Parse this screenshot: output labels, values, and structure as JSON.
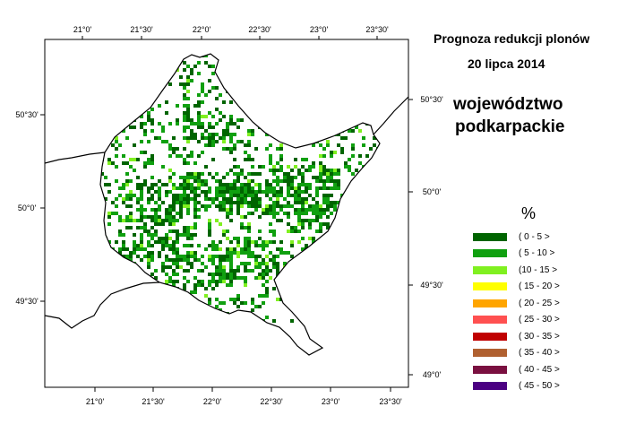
{
  "title": "Prognoza redukcji plonów",
  "date": "20 lipca 2014",
  "region": [
    "województwo",
    "podkarpackie"
  ],
  "legend": {
    "unit": "%",
    "items": [
      {
        "label": "( 0 - 5 >",
        "color": "#006400"
      },
      {
        "label": "( 5 - 10 >",
        "color": "#10a010"
      },
      {
        "label": "(10 - 15 >",
        "color": "#80f020"
      },
      {
        "label": "( 15 - 20 >",
        "color": "#ffff00"
      },
      {
        "label": "( 20 - 25 >",
        "color": "#ffa500"
      },
      {
        "label": "( 25 - 30 >",
        "color": "#ff5050"
      },
      {
        "label": "( 30 - 35 >",
        "color": "#c00000"
      },
      {
        "label": "( 35 - 40 >",
        "color": "#b06030"
      },
      {
        "label": "( 40 - 45 >",
        "color": "#7a1040"
      },
      {
        "label": "( 45 - 50 >",
        "color": "#4b0082"
      }
    ]
  },
  "axes": {
    "top": [
      "21°0'",
      "21°30'",
      "22°0'",
      "22°30'",
      "23°0'",
      "23°30'"
    ],
    "bottom": [
      "21°0'",
      "21°30'",
      "22°0'",
      "22°30'",
      "23°0'",
      "23°30'"
    ],
    "left": [
      "50°30'",
      "50°0'",
      "49°30'"
    ],
    "right": [
      "50°30'",
      "50°0'",
      "49°30'",
      "49°0'"
    ]
  }
}
